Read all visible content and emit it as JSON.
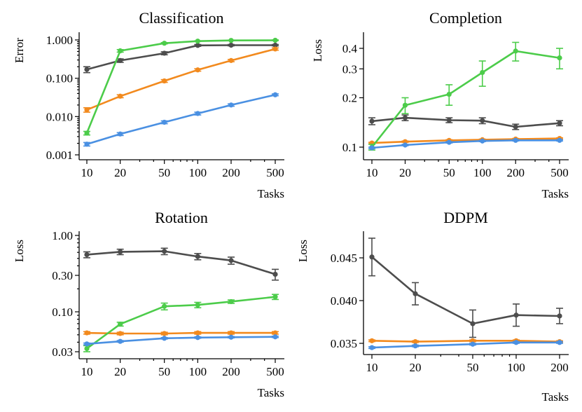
{
  "colors": {
    "gray": "#4d4d4d",
    "orange": "#f28a1e",
    "green": "#4ccc4a",
    "blue": "#4a90e2"
  },
  "chart_data": [
    {
      "type": "line",
      "title": "Classification",
      "xlabel": "Tasks",
      "ylabel": "Error",
      "xscale": "log",
      "yscale": "log",
      "xlim": [
        8.5,
        590
      ],
      "ylim": [
        0.001,
        1.3
      ],
      "xticks": [
        10,
        20,
        50,
        100,
        200,
        500
      ],
      "xtick_labels": [
        "10",
        "20",
        "50",
        "100",
        "200",
        "500"
      ],
      "yticks": [
        0.001,
        0.01,
        0.1,
        1
      ],
      "ytick_labels": [
        "0.001",
        "0.010",
        "0.100",
        "1.000"
      ],
      "x": [
        10,
        20,
        50,
        100,
        200,
        500
      ],
      "series": [
        {
          "name": "gray",
          "color": "#4d4d4d",
          "values": [
            0.17,
            0.29,
            0.45,
            0.72,
            0.73,
            0.73
          ],
          "err": [
            0.03,
            0.03,
            0.04,
            0.04,
            0.03,
            0.03
          ]
        },
        {
          "name": "orange",
          "color": "#f28a1e",
          "values": [
            0.015,
            0.034,
            0.085,
            0.165,
            0.29,
            0.58
          ],
          "err": [
            0.002,
            0.003,
            0.007,
            0.012,
            0.02,
            0.04
          ]
        },
        {
          "name": "green",
          "color": "#4ccc4a",
          "values": [
            0.0037,
            0.52,
            0.82,
            0.93,
            0.97,
            0.98
          ],
          "err": [
            0.0004,
            0.04,
            0.03,
            0.02,
            0.02,
            0.02
          ]
        },
        {
          "name": "blue",
          "color": "#4a90e2",
          "values": [
            0.0019,
            0.0035,
            0.0071,
            0.012,
            0.02,
            0.037
          ],
          "err": [
            0.0002,
            0.0003,
            0.0006,
            0.001,
            0.0014,
            0.002
          ]
        }
      ]
    },
    {
      "type": "line",
      "title": "Completion",
      "xlabel": "Tasks",
      "ylabel": "Loss",
      "xscale": "log",
      "yscale": "log",
      "xlim": [
        8.5,
        590
      ],
      "ylim": [
        0.095,
        0.45
      ],
      "xticks": [
        10,
        20,
        50,
        100,
        200,
        500
      ],
      "xtick_labels": [
        "10",
        "20",
        "50",
        "100",
        "200",
        "500"
      ],
      "yticks": [
        0.1,
        0.2,
        0.3,
        0.4
      ],
      "ytick_labels": [
        "0.1",
        "0.2",
        "0.3",
        "0.4"
      ],
      "x": [
        10,
        20,
        50,
        100,
        200,
        500
      ],
      "series": [
        {
          "name": "gray",
          "color": "#4d4d4d",
          "values": [
            0.144,
            0.151,
            0.146,
            0.145,
            0.133,
            0.14
          ],
          "err": [
            0.007,
            0.006,
            0.005,
            0.006,
            0.005,
            0.005
          ]
        },
        {
          "name": "orange",
          "color": "#f28a1e",
          "values": [
            0.106,
            0.108,
            0.11,
            0.111,
            0.112,
            0.113
          ],
          "err": [
            0.001,
            0.001,
            0.001,
            0.001,
            0.001,
            0.001
          ]
        },
        {
          "name": "green",
          "color": "#4ccc4a",
          "values": [
            0.1,
            0.18,
            0.21,
            0.285,
            0.385,
            0.35
          ],
          "err": [
            0.004,
            0.02,
            0.03,
            0.05,
            0.05,
            0.05
          ]
        },
        {
          "name": "blue",
          "color": "#4a90e2",
          "values": [
            0.099,
            0.103,
            0.107,
            0.109,
            0.11,
            0.11
          ],
          "err": [
            0.001,
            0.001,
            0.001,
            0.001,
            0.001,
            0.001
          ]
        }
      ]
    },
    {
      "type": "line",
      "title": "Rotation",
      "xlabel": "Tasks",
      "ylabel": "Loss",
      "xscale": "log",
      "yscale": "log",
      "xlim": [
        8.5,
        590
      ],
      "ylim": [
        0.03,
        1.0
      ],
      "xticks": [
        10,
        20,
        50,
        100,
        200,
        500
      ],
      "xtick_labels": [
        "10",
        "20",
        "50",
        "100",
        "200",
        "500"
      ],
      "yticks": [
        0.03,
        0.1,
        0.3,
        1
      ],
      "ytick_labels": [
        "0.03",
        "0.10",
        "0.30",
        "1.00"
      ],
      "x": [
        10,
        20,
        50,
        100,
        200,
        500
      ],
      "series": [
        {
          "name": "gray",
          "color": "#4d4d4d",
          "values": [
            0.56,
            0.61,
            0.62,
            0.53,
            0.47,
            0.31
          ],
          "err": [
            0.05,
            0.05,
            0.06,
            0.05,
            0.05,
            0.05
          ]
        },
        {
          "name": "orange",
          "color": "#f28a1e",
          "values": [
            0.053,
            0.052,
            0.052,
            0.053,
            0.053,
            0.053
          ],
          "err": [
            0.002,
            0.002,
            0.002,
            0.002,
            0.002,
            0.002
          ]
        },
        {
          "name": "green",
          "color": "#4ccc4a",
          "values": [
            0.033,
            0.069,
            0.118,
            0.123,
            0.136,
            0.157
          ],
          "err": [
            0.003,
            0.004,
            0.012,
            0.01,
            0.007,
            0.012
          ]
        },
        {
          "name": "blue",
          "color": "#4a90e2",
          "values": [
            0.038,
            0.041,
            0.045,
            0.046,
            0.0465,
            0.047
          ],
          "err": [
            0.001,
            0.001,
            0.001,
            0.001,
            0.001,
            0.001
          ]
        }
      ]
    },
    {
      "type": "line",
      "title": "DDPM",
      "xlabel": "Tasks",
      "ylabel": "Loss",
      "xscale": "log",
      "yscale": "linear",
      "xlim": [
        8.5,
        235
      ],
      "ylim": [
        0.0344,
        0.0478
      ],
      "xticks": [
        10,
        20,
        50,
        100,
        200
      ],
      "xtick_labels": [
        "10",
        "20",
        "50",
        "100",
        "200"
      ],
      "yticks": [
        0.035,
        0.04,
        0.045
      ],
      "ytick_labels": [
        "0.035",
        "0.040",
        "0.045"
      ],
      "x": [
        10,
        20,
        50,
        100,
        200
      ],
      "series": [
        {
          "name": "gray",
          "color": "#4d4d4d",
          "values": [
            0.0451,
            0.0408,
            0.0373,
            0.0383,
            0.0382
          ],
          "err": [
            0.0022,
            0.0013,
            0.0016,
            0.0013,
            0.0009
          ]
        },
        {
          "name": "orange",
          "color": "#f28a1e",
          "values": [
            0.0353,
            0.0352,
            0.0353,
            0.0353,
            0.0352
          ],
          "err": [
            0.0001,
            0.0001,
            0.0001,
            0.0001,
            0.0001
          ]
        },
        {
          "name": "blue",
          "color": "#4a90e2",
          "values": [
            0.0345,
            0.0347,
            0.0349,
            0.0351,
            0.0351
          ],
          "err": [
            0.0001,
            0.0001,
            0.0001,
            0.0001,
            0.0001
          ]
        }
      ]
    }
  ]
}
